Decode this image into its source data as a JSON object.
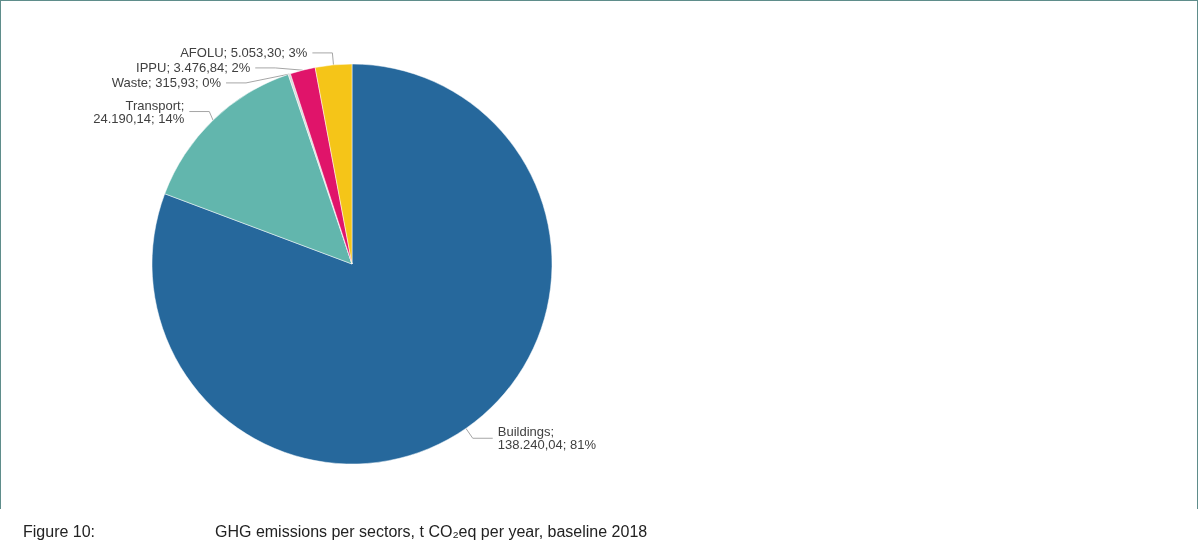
{
  "chart_data": {
    "type": "pie",
    "title": "Figure 10:",
    "subtitle": "GHG emissions per sectors, t CO₂eq per year, baseline 2018",
    "categories": [
      "Buildings",
      "Transport",
      "Waste",
      "IPPU",
      "AFOLU"
    ],
    "values": [
      138240.04,
      24190.14,
      315.93,
      3476.84,
      5053.3
    ],
    "colors": [
      "#26689c",
      "#62b6ad",
      "#d9d9d9",
      "#e0146a",
      "#f5c518"
    ],
    "value_labels": [
      "; 138.240,04; 81%",
      "; 24.190,14; 14%",
      "; 315,93; 0%",
      "; 3.476,84; 2%",
      "; 5.053,30; 3%"
    ],
    "legend": false
  }
}
